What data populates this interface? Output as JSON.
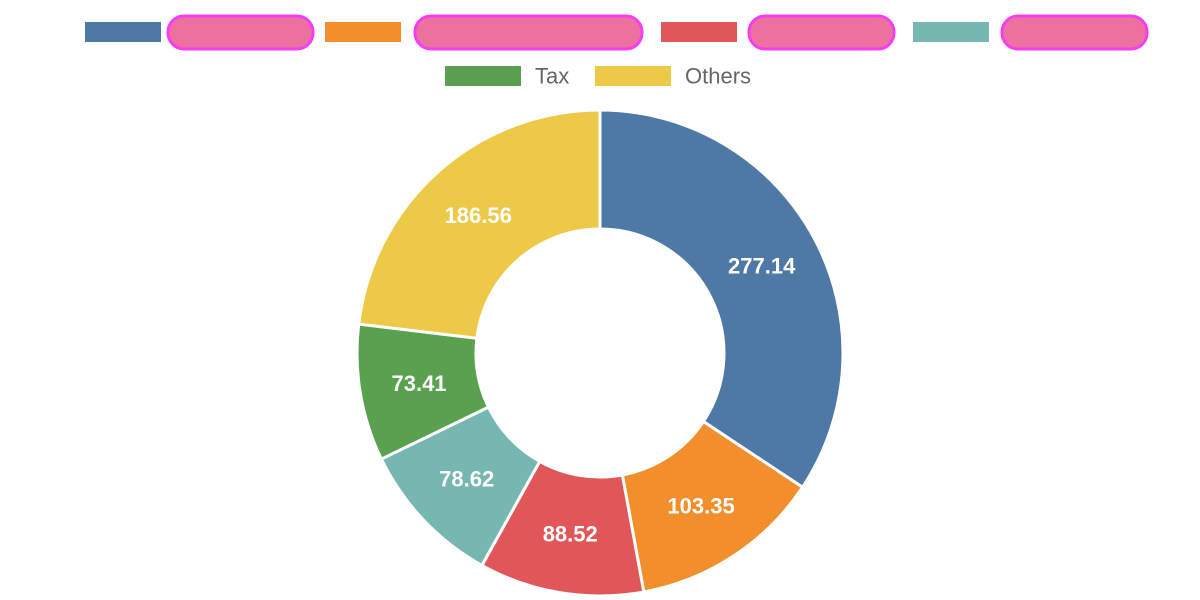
{
  "chart_data": {
    "type": "pie",
    "variant": "donut",
    "title": "",
    "slices": [
      {
        "value": 277.14,
        "label": "277.14",
        "color": "#4e79a7",
        "legend": "",
        "legend_redacted": true
      },
      {
        "value": 103.35,
        "label": "103.35",
        "color": "#f28e2b",
        "legend": "",
        "legend_redacted": true
      },
      {
        "value": 88.52,
        "label": "88.52",
        "color": "#e15759",
        "legend": "",
        "legend_redacted": true
      },
      {
        "value": 78.62,
        "label": "78.62",
        "color": "#76b7b2",
        "legend": "",
        "legend_redacted": true
      },
      {
        "value": 73.41,
        "label": "73.41",
        "color": "#59a14f",
        "legend": "Tax",
        "legend_redacted": false
      },
      {
        "value": 186.56,
        "label": "186.56",
        "color": "#edc948",
        "legend": "Others",
        "legend_redacted": false
      }
    ],
    "legend_position": "top",
    "redaction_color": "#ec719f",
    "redaction_border": "#f53df2",
    "label_color": "#ffffff",
    "legend_text_color": "#666666"
  }
}
